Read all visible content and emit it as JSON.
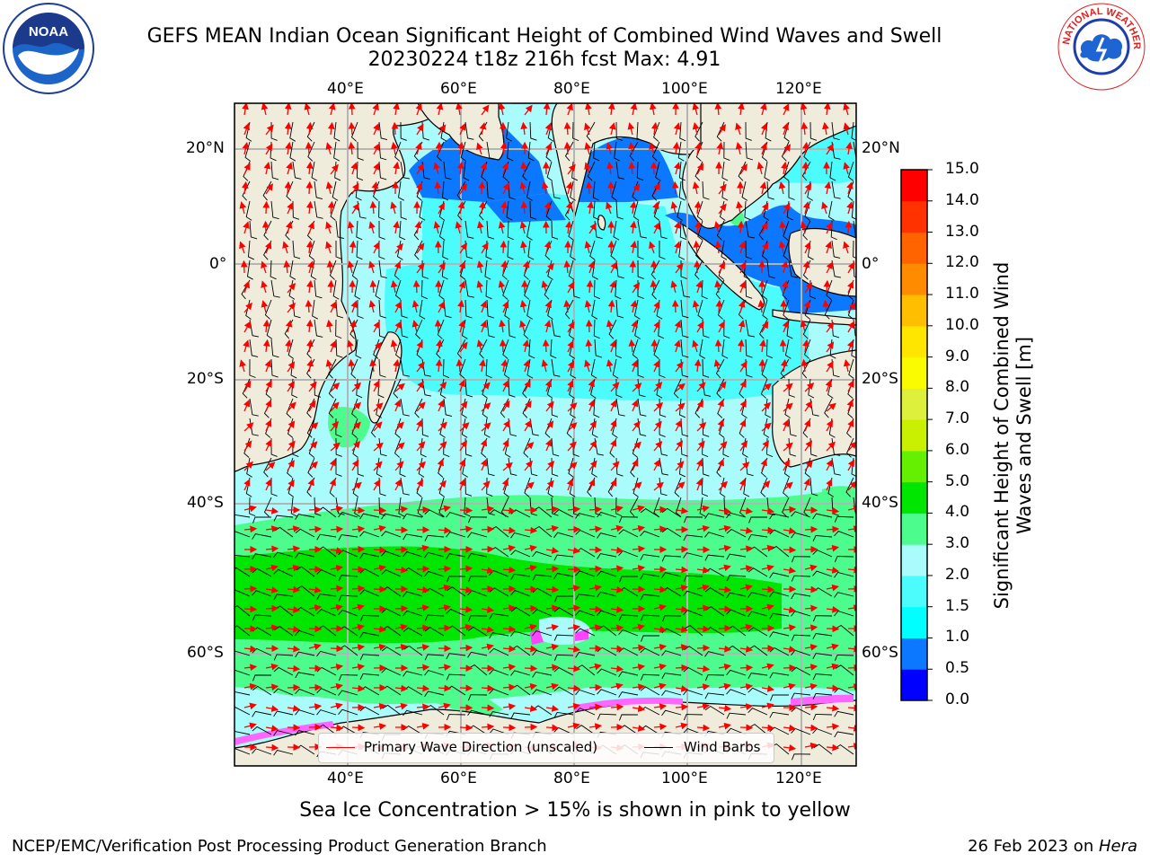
{
  "header": {
    "title_line1": "GEFS MEAN Indian Ocean Significant Height of Combined Wind Waves and Swell",
    "title_line2": "20230224 t18z 216h fcst   Max: 4.91"
  },
  "logos": {
    "left": {
      "icon": "noaa-logo-icon",
      "text": "NOAA",
      "ring_text": "NATIONAL OCEANIC AND ATMOSPHERIC ADMINISTRATION · U.S. DEPARTMENT OF COMMERCE"
    },
    "right": {
      "icon": "nws-logo-icon",
      "ring_text": "NATIONAL WEATHER SERVICE"
    }
  },
  "map": {
    "lon_ticks": [
      "40°E",
      "60°E",
      "80°E",
      "100°E",
      "120°E"
    ],
    "lat_ticks": [
      "20°N",
      "0°",
      "20°S",
      "40°S",
      "60°S"
    ],
    "land_color": "#efecdc",
    "grid_color": "#b4b4b4"
  },
  "colorbar": {
    "label": "Significant Height of Combined Wind Waves and Swell [m]",
    "ticks": [
      "0.0",
      "0.5",
      "1.0",
      "1.5",
      "2.0",
      "3.0",
      "4.0",
      "5.0",
      "6.0",
      "7.0",
      "8.0",
      "9.0",
      "10.0",
      "11.0",
      "12.0",
      "13.0",
      "14.0",
      "15.0"
    ],
    "colors": [
      "#0000ff",
      "#0c78ff",
      "#00ffff",
      "#4cfcfc",
      "#aafbfb",
      "#4cfc8c",
      "#00e600",
      "#64f000",
      "#c8f000",
      "#dcf03c",
      "#fafa00",
      "#ffe600",
      "#ffbe00",
      "#ff8c00",
      "#ff6400",
      "#ff3200",
      "#ff0000"
    ]
  },
  "legend": {
    "wave_label": "Primary Wave Direction (unscaled)",
    "wave_color": "#ff0000",
    "barb_label": "Wind Barbs",
    "barb_color": "#000000"
  },
  "notes": {
    "ice": "Sea Ice Concentration > 15% is shown in pink to yellow"
  },
  "footer": {
    "left": "NCEP/EMC/Verification Post Processing Product Generation Branch",
    "date": "26 Feb 2023 on ",
    "host": "Hera"
  }
}
